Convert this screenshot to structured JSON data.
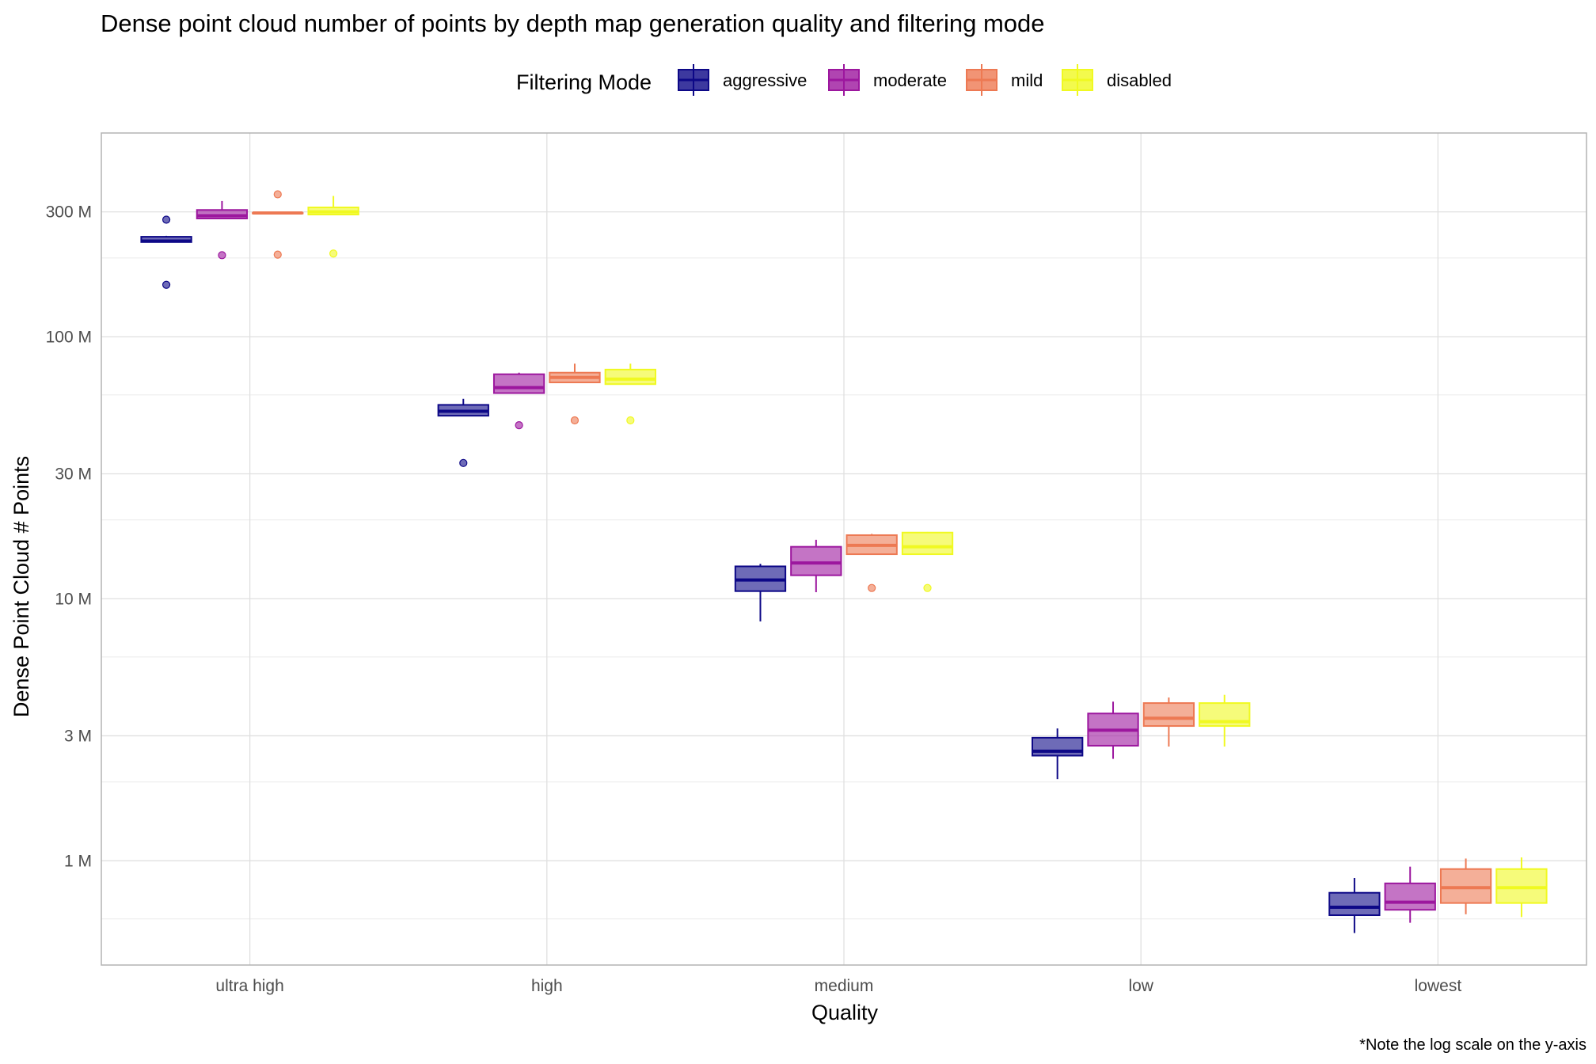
{
  "chart_data": {
    "type": "boxplot",
    "title": "Dense point cloud number of points by depth map generation quality and filtering mode",
    "xlabel": "Quality",
    "ylabel": "Dense Point Cloud # Points",
    "caption": "*Note the log scale on the y-axis",
    "y_scale": "log10",
    "ylim": [
      400000,
      600000000
    ],
    "y_ticks": [
      {
        "value": 1000000,
        "label": "1 M"
      },
      {
        "value": 3000000,
        "label": "3 M"
      },
      {
        "value": 10000000,
        "label": "10 M"
      },
      {
        "value": 30000000,
        "label": "30 M"
      },
      {
        "value": 100000000,
        "label": "100 M"
      },
      {
        "value": 300000000,
        "label": "300 M"
      }
    ],
    "y_minor_grid": [
      600000,
      2000000,
      6000000,
      20000000,
      60000000,
      200000000
    ],
    "grid": true,
    "legend": {
      "title": "Filtering Mode",
      "position": "top"
    },
    "categories": [
      "ultra high",
      "high",
      "medium",
      "low",
      "lowest"
    ],
    "series": [
      {
        "name": "aggressive",
        "color": "#0d0887",
        "boxes": [
          {
            "whisker_low": 230000000,
            "q1": 230000000,
            "median": 232000000,
            "q3": 241000000,
            "whisker_high": 243000000,
            "outliers": [
              280000000,
              158000000
            ]
          },
          {
            "whisker_low": 50000000,
            "q1": 50000000,
            "median": 52000000,
            "q3": 55000000,
            "whisker_high": 58000000,
            "outliers": [
              33000000
            ]
          },
          {
            "whisker_low": 8200000,
            "q1": 10700000,
            "median": 11800000,
            "q3": 13300000,
            "whisker_high": 13600000,
            "outliers": []
          },
          {
            "whisker_low": 2050000,
            "q1": 2520000,
            "median": 2620000,
            "q3": 2950000,
            "whisker_high": 3200000,
            "outliers": []
          },
          {
            "whisker_low": 530000,
            "q1": 620000,
            "median": 665000,
            "q3": 755000,
            "whisker_high": 860000,
            "outliers": []
          }
        ]
      },
      {
        "name": "moderate",
        "color": "#9c179e",
        "boxes": [
          {
            "whisker_low": 283000000,
            "q1": 283000000,
            "median": 290000000,
            "q3": 305000000,
            "whisker_high": 330000000,
            "outliers": [
              205000000
            ]
          },
          {
            "whisker_low": 61000000,
            "q1": 61000000,
            "median": 64000000,
            "q3": 72000000,
            "whisker_high": 73000000,
            "outliers": [
              46000000
            ]
          },
          {
            "whisker_low": 10600000,
            "q1": 12300000,
            "median": 13700000,
            "q3": 15800000,
            "whisker_high": 16800000,
            "outliers": []
          },
          {
            "whisker_low": 2450000,
            "q1": 2750000,
            "median": 3150000,
            "q3": 3650000,
            "whisker_high": 4050000,
            "outliers": []
          },
          {
            "whisker_low": 580000,
            "q1": 650000,
            "median": 695000,
            "q3": 820000,
            "whisker_high": 950000,
            "outliers": []
          }
        ]
      },
      {
        "name": "mild",
        "color": "#ed7953",
        "boxes": [
          {
            "whisker_low": 297000000,
            "q1": 297000000,
            "median": 297000000,
            "q3": 297000000,
            "whisker_high": 297000000,
            "outliers": [
              350000000,
              206000000
            ]
          },
          {
            "whisker_low": 67000000,
            "q1": 67000000,
            "median": 70000000,
            "q3": 73000000,
            "whisker_high": 79000000,
            "outliers": [
              48000000
            ]
          },
          {
            "whisker_low": 14800000,
            "q1": 14800000,
            "median": 16000000,
            "q3": 17500000,
            "whisker_high": 17700000,
            "outliers": [
              11000000
            ]
          },
          {
            "whisker_low": 2730000,
            "q1": 3270000,
            "median": 3500000,
            "q3": 4000000,
            "whisker_high": 4200000,
            "outliers": []
          },
          {
            "whisker_low": 625000,
            "q1": 690000,
            "median": 790000,
            "q3": 930000,
            "whisker_high": 1020000,
            "outliers": []
          }
        ]
      },
      {
        "name": "disabled",
        "color": "#f0f921",
        "boxes": [
          {
            "whisker_low": 293000000,
            "q1": 293000000,
            "median": 300000000,
            "q3": 312000000,
            "whisker_high": 345000000,
            "outliers": [
              208000000
            ]
          },
          {
            "whisker_low": 66000000,
            "q1": 66000000,
            "median": 69000000,
            "q3": 75000000,
            "whisker_high": 79000000,
            "outliers": [
              48000000
            ]
          },
          {
            "whisker_low": 14800000,
            "q1": 14800000,
            "median": 15800000,
            "q3": 17900000,
            "whisker_high": 18000000,
            "outliers": [
              11000000
            ]
          },
          {
            "whisker_low": 2730000,
            "q1": 3270000,
            "median": 3400000,
            "q3": 4000000,
            "whisker_high": 4300000,
            "outliers": []
          },
          {
            "whisker_low": 610000,
            "q1": 690000,
            "median": 790000,
            "q3": 930000,
            "whisker_high": 1030000,
            "outliers": []
          }
        ]
      }
    ]
  }
}
